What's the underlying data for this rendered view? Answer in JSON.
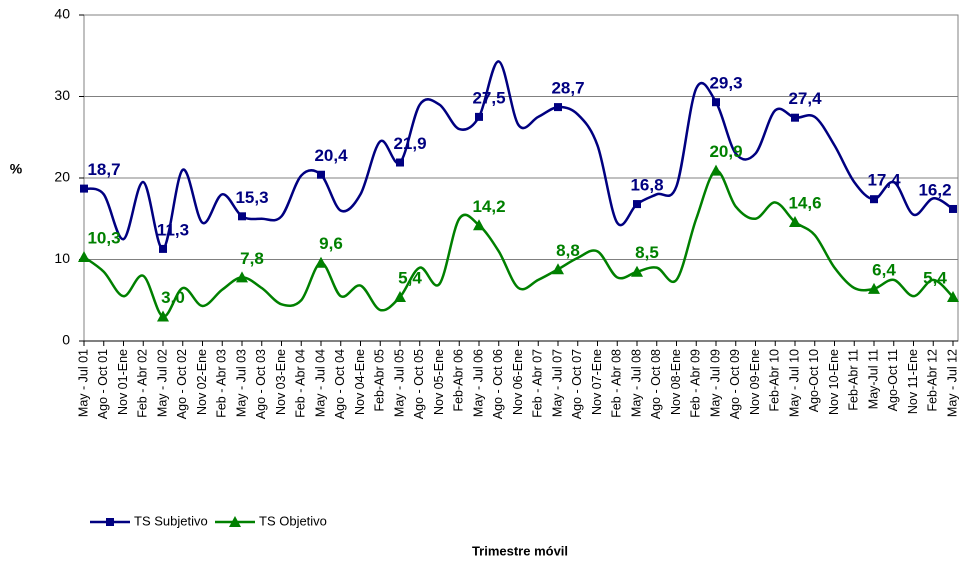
{
  "chart_data": {
    "type": "line",
    "y_label": "%",
    "x_label": "Trimestre móvil",
    "categories": [
      "May - Jul 01",
      "Ago - Oct 01",
      "Nov 01-Ene",
      "Feb - Abr 02",
      "May - Jul 02",
      "Ago - Oct 02",
      "Nov 02-Ene",
      "Feb - Abr 03",
      "May - Jul 03",
      "Ago - Oct 03",
      "Nov 03-Ene",
      "Feb - Abr 04",
      "May - Jul 04",
      "Ago - Oct 04",
      "Nov 04-Ene",
      "Feb-Abr 05",
      "May - Jul 05",
      "Ago - Oct 05",
      "Nov 05-Ene",
      "Feb-Abr 06",
      "May - Jul 06",
      "Ago - Oct 06",
      "Nov 06-Ene",
      "Feb - Abr 07",
      "May - Jul 07",
      "Ago - Oct 07",
      "Nov 07-Ene",
      "Feb - Abr 08",
      "May - Jul 08",
      "Ago - Oct 08",
      "Nov 08-Ene",
      "Feb - Abr 09",
      "May - Jul 09",
      "Ago - Oct 09",
      "Nov 09-Ene",
      "Feb-Abr 10",
      "May - Jul 10",
      "Ago-Oct 10",
      "Nov 10-Ene",
      "Feb-Abr 11",
      "May-Jul 11",
      "Ago-Oct 11",
      "Nov 11-Ene",
      "Feb-Abr 12",
      "May - Jul 12"
    ],
    "series": [
      {
        "name": "TS Subjetivo",
        "color": "#000080",
        "marker": "square",
        "values": [
          18.7,
          18,
          12.5,
          19.5,
          11.3,
          21,
          14.5,
          18,
          15.3,
          15,
          15.3,
          20.3,
          20.4,
          16,
          18,
          24.5,
          21.9,
          29,
          29,
          26,
          27.5,
          34.3,
          26.5,
          27.5,
          28.7,
          27.8,
          24,
          14.5,
          16.8,
          18,
          19,
          31,
          29.3,
          23,
          23,
          28.3,
          27.4,
          27.5,
          24,
          19.5,
          17.4,
          19.5,
          15.5,
          17.5,
          16.2
        ],
        "value_labels": [
          "18,7",
          null,
          null,
          null,
          "11,3",
          null,
          null,
          null,
          "15,3",
          null,
          null,
          null,
          "20,4",
          null,
          null,
          null,
          "21,9",
          null,
          null,
          null,
          "27,5",
          null,
          null,
          null,
          "28,7",
          null,
          null,
          null,
          "16,8",
          null,
          null,
          null,
          "29,3",
          null,
          null,
          null,
          "27,4",
          null,
          null,
          null,
          "17,4",
          null,
          null,
          null,
          "16,2"
        ]
      },
      {
        "name": "TS Objetivo",
        "color": "#008000",
        "marker": "triangle",
        "values": [
          10.3,
          8.5,
          5.5,
          8,
          3.0,
          6.5,
          4.3,
          6.3,
          7.8,
          6.5,
          4.5,
          5,
          9.6,
          5.5,
          6.8,
          3.8,
          5.4,
          9,
          7,
          15,
          14.2,
          11,
          6.5,
          7.5,
          8.8,
          10.2,
          11,
          7.8,
          8.5,
          9,
          7.5,
          15,
          20.9,
          16.5,
          15,
          17,
          14.6,
          13,
          9,
          6.5,
          6.4,
          7.5,
          5.5,
          7.5,
          5.4
        ],
        "value_labels": [
          "10,3",
          null,
          null,
          null,
          "3,0",
          null,
          null,
          null,
          "7,8",
          null,
          null,
          null,
          "9,6",
          null,
          null,
          null,
          "5,4",
          null,
          null,
          null,
          "14,2",
          null,
          null,
          null,
          "8,8",
          null,
          null,
          null,
          "8,5",
          null,
          null,
          null,
          "20,9",
          null,
          null,
          null,
          "14,6",
          null,
          null,
          null,
          "6,4",
          null,
          null,
          null,
          "5,4"
        ]
      }
    ],
    "ylim": [
      0,
      40
    ],
    "yticks": [
      0,
      10,
      20,
      30,
      40
    ],
    "grid": true
  }
}
